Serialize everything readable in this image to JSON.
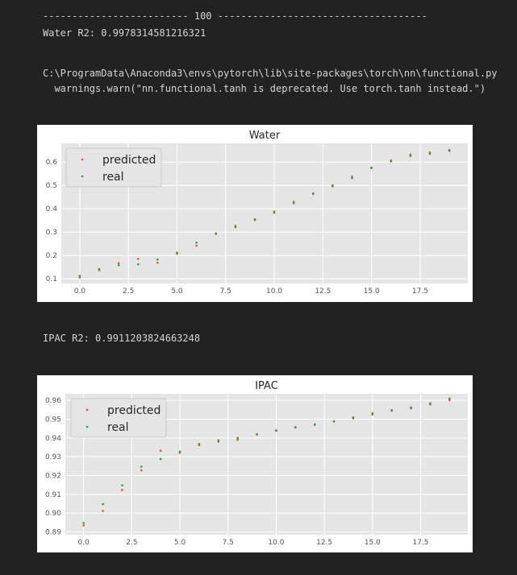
{
  "output": {
    "separator_line": "------------------------- 100 ------------------------------------",
    "water_r2": "Water R2: 0.9978314581216321",
    "warning_path": "C:\\ProgramData\\Anaconda3\\envs\\pytorch\\lib\\site-packages\\torch\\nn\\functional.py",
    "warning_msg": "  warnings.warn(\"nn.functional.tanh is deprecated. Use torch.tanh instead.\")",
    "ipac_r2": "IPAC R2: 0.9911203824663248"
  },
  "colors": {
    "predicted": "#e8502a",
    "real": "#23a33a",
    "plot_bg": "#e5e5e5",
    "grid": "#ffffff"
  },
  "chart_data": [
    {
      "type": "scatter",
      "title": "Water",
      "xlabel": "",
      "ylabel": "",
      "xlim": [
        -0.95,
        19.95
      ],
      "ylim": [
        0.08,
        0.68
      ],
      "xticks": [
        "0.0",
        "2.5",
        "5.0",
        "7.5",
        "10.0",
        "12.5",
        "15.0",
        "17.5"
      ],
      "yticks": [
        "0.1",
        "0.2",
        "0.3",
        "0.4",
        "0.5",
        "0.6"
      ],
      "grid": true,
      "legend": "top-left",
      "x": [
        0,
        1,
        2,
        3,
        4,
        5,
        6,
        7,
        8,
        9,
        10,
        11,
        12,
        13,
        14,
        15,
        16,
        17,
        18,
        19
      ],
      "series": [
        {
          "name": "predicted",
          "values": [
            0.113,
            0.142,
            0.167,
            0.185,
            0.169,
            0.212,
            0.242,
            0.295,
            0.327,
            0.355,
            0.388,
            0.43,
            0.466,
            0.5,
            0.537,
            0.577,
            0.607,
            0.632,
            0.641,
            0.652
          ]
        },
        {
          "name": "real",
          "values": [
            0.106,
            0.137,
            0.158,
            0.162,
            0.183,
            0.208,
            0.255,
            0.292,
            0.321,
            0.352,
            0.383,
            0.424,
            0.463,
            0.496,
            0.531,
            0.574,
            0.603,
            0.626,
            0.635,
            0.648
          ]
        }
      ]
    },
    {
      "type": "scatter",
      "title": "IPAC",
      "xlabel": "",
      "ylabel": "",
      "xlim": [
        -0.95,
        19.95
      ],
      "ylim": [
        0.8885,
        0.9635
      ],
      "xticks": [
        "0.0",
        "2.5",
        "5.0",
        "7.5",
        "10.0",
        "12.5",
        "15.0",
        "17.5"
      ],
      "yticks": [
        "0.89",
        "0.90",
        "0.91",
        "0.92",
        "0.93",
        "0.94",
        "0.95",
        "0.96"
      ],
      "grid": true,
      "legend": "top-left",
      "x": [
        0,
        1,
        2,
        3,
        4,
        5,
        6,
        7,
        8,
        9,
        10,
        11,
        12,
        13,
        14,
        15,
        16,
        17,
        18,
        19
      ],
      "series": [
        {
          "name": "predicted",
          "values": [
            0.8935,
            0.9012,
            0.9123,
            0.9228,
            0.9332,
            0.9321,
            0.9362,
            0.938,
            0.939,
            0.9418,
            0.9441,
            0.9458,
            0.947,
            0.9488,
            0.951,
            0.9532,
            0.9548,
            0.9563,
            0.9578,
            0.9601
          ]
        },
        {
          "name": "real",
          "values": [
            0.8948,
            0.9048,
            0.9148,
            0.9248,
            0.9288,
            0.9328,
            0.9368,
            0.9388,
            0.94,
            0.942,
            0.9438,
            0.9455,
            0.9472,
            0.9488,
            0.9505,
            0.9525,
            0.9545,
            0.9558,
            0.9585,
            0.961
          ]
        }
      ]
    }
  ]
}
